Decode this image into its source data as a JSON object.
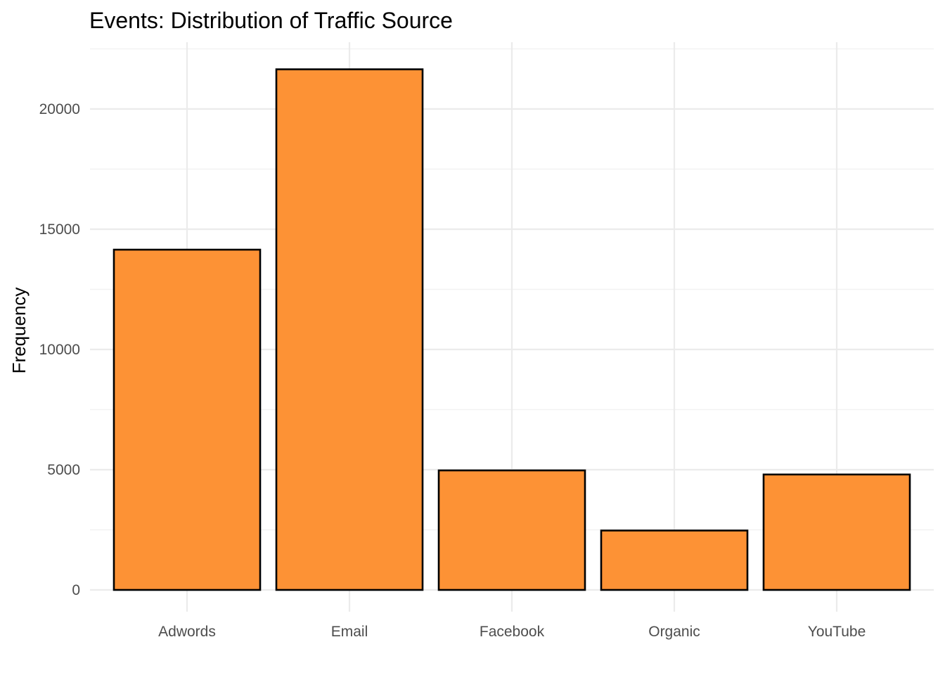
{
  "chart_data": {
    "type": "bar",
    "title": "Events: Distribution of Traffic Source",
    "xlabel": "",
    "ylabel": "Frequency",
    "categories": [
      "Adwords",
      "Email",
      "Facebook",
      "Organic",
      "YouTube"
    ],
    "values": [
      14150,
      21650,
      4970,
      2470,
      4800
    ],
    "ylim": [
      0,
      22000
    ],
    "yticks": [
      0,
      5000,
      10000,
      15000,
      20000
    ],
    "ytick_labels": [
      "0",
      "5000",
      "10000",
      "15000",
      "20000"
    ],
    "minor_yticks": [
      2500,
      7500,
      12500,
      17500
    ],
    "grid": true,
    "legend": "none",
    "bar_color": "#fd9235",
    "bar_outline_color": "#000000"
  }
}
